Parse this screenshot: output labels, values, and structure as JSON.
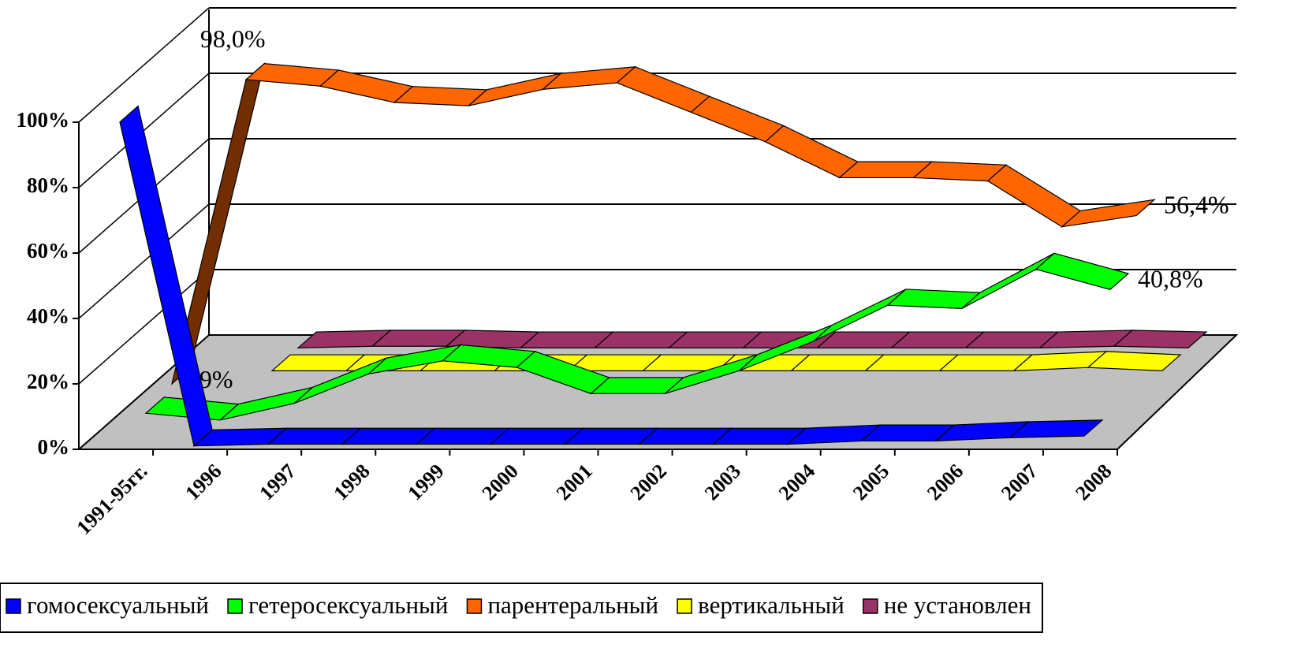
{
  "chart_data": {
    "type": "line3d",
    "categories": [
      "1991-95гг.",
      "1996",
      "1997",
      "1998",
      "1999",
      "2000",
      "2001",
      "2002",
      "2003",
      "2004",
      "2005",
      "2006",
      "2007",
      "2008"
    ],
    "series": [
      {
        "name": "гомосексуальный",
        "color": "#0000ff",
        "values": [
          99,
          0,
          0.5,
          0.5,
          0.5,
          0.5,
          0.5,
          0.5,
          0.5,
          0.5,
          1.5,
          1.5,
          2.5,
          3
        ]
      },
      {
        "name": "гетеросексуальный",
        "color": "#00ff00",
        "values": [
          3,
          0.9,
          6,
          15,
          19,
          17,
          9,
          9,
          16,
          25,
          36,
          35,
          47,
          40.8
        ],
        "value_labels": [
          null,
          "0,9%",
          null,
          null,
          null,
          null,
          null,
          null,
          null,
          null,
          null,
          null,
          null,
          "40,8%"
        ]
      },
      {
        "name": "парентеральный",
        "color": "#ff6600",
        "values": [
          5,
          98,
          96,
          91,
          90,
          95,
          97,
          88,
          79,
          68,
          68,
          67,
          53,
          56.4
        ],
        "value_labels": [
          null,
          "98,0%",
          null,
          null,
          null,
          null,
          null,
          null,
          null,
          null,
          null,
          null,
          null,
          "56,4%"
        ]
      },
      {
        "name": "вертикальный",
        "color": "#ffff00",
        "values": [
          null,
          2,
          2,
          2,
          2,
          2,
          2,
          2,
          2,
          2,
          2,
          2,
          3,
          2
        ]
      },
      {
        "name": "не установлен",
        "color": "#993366",
        "values": [
          null,
          2,
          2.5,
          2.5,
          2,
          2,
          2,
          2,
          2,
          2,
          2,
          2,
          2.5,
          2
        ]
      }
    ],
    "ylim": [
      0,
      100
    ],
    "yticks": [
      {
        "value": 0,
        "label": "0%"
      },
      {
        "value": 20,
        "label": "20%"
      },
      {
        "value": 40,
        "label": "40%"
      },
      {
        "value": 60,
        "label": "60%"
      },
      {
        "value": 80,
        "label": "80%"
      },
      {
        "value": 100,
        "label": "100%"
      }
    ],
    "grid": true,
    "legend": "bottom"
  }
}
